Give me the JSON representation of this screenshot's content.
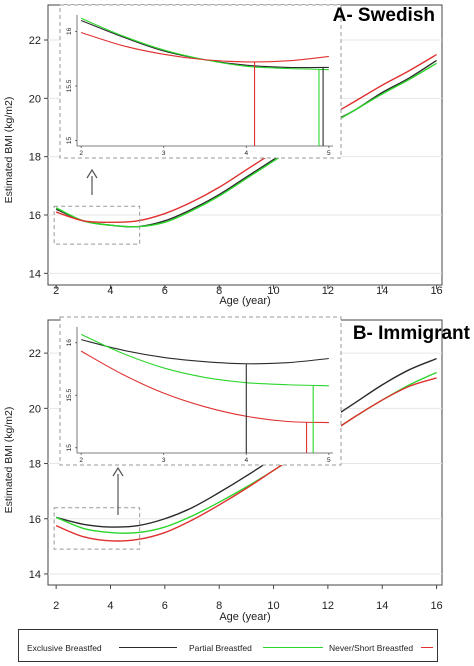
{
  "chart_data": [
    {
      "type": "line",
      "panel_label": "A- Swedish",
      "xlabel": "Age (year)",
      "ylabel": "Estimated BMI (kg/m2)",
      "xlim": [
        1.7,
        16.2
      ],
      "ylim": [
        13.6,
        23.2
      ],
      "x_ticks": [
        "2",
        "4",
        "6",
        "8",
        "10",
        "12",
        "14",
        "16"
      ],
      "y_ticks": [
        "14",
        "16",
        "18",
        "20",
        "22"
      ],
      "series": [
        {
          "name": "Exclusive Breastfed",
          "color": "#2b2b2b",
          "x": [
            2,
            3,
            4,
            5,
            6,
            7,
            8,
            9,
            10,
            11,
            12,
            13,
            14,
            15,
            16
          ],
          "y": [
            16.2,
            15.8,
            15.65,
            15.6,
            15.8,
            16.2,
            16.7,
            17.3,
            17.9,
            18.5,
            19.1,
            19.6,
            20.2,
            20.7,
            21.3
          ]
        },
        {
          "name": "Partial Breastfed",
          "color": "#2bd62b",
          "x": [
            2,
            3,
            4,
            5,
            6,
            7,
            8,
            9,
            10,
            11,
            12,
            13,
            14,
            15,
            16
          ],
          "y": [
            16.25,
            15.8,
            15.65,
            15.6,
            15.75,
            16.15,
            16.65,
            17.25,
            17.85,
            18.45,
            19.05,
            19.6,
            20.15,
            20.65,
            21.2
          ]
        },
        {
          "name": "Never/Short Breastfed",
          "color": "#e03030",
          "x": [
            2,
            3,
            4,
            5,
            6,
            7,
            8,
            9,
            10,
            11,
            12,
            13,
            14,
            15,
            16
          ],
          "y": [
            16.1,
            15.8,
            15.75,
            15.8,
            16.05,
            16.45,
            16.95,
            17.55,
            18.15,
            18.75,
            19.35,
            19.9,
            20.45,
            20.95,
            21.5
          ]
        }
      ],
      "inset": {
        "xlim": [
          1.95,
          5.05
        ],
        "ylim": [
          14.95,
          16.15
        ],
        "x_ticks": [
          "2",
          "3",
          "4",
          "5"
        ],
        "y_ticks": [
          "15",
          "15.5",
          "16"
        ],
        "series": [
          {
            "name": "Exclusive Breastfed",
            "x": [
              2,
              2.5,
              3,
              3.5,
              4,
              4.5,
              5
            ],
            "y": [
              16.1,
              15.95,
              15.82,
              15.74,
              15.69,
              15.67,
              15.67
            ]
          },
          {
            "name": "Partial Breastfed",
            "x": [
              2,
              2.5,
              3,
              3.5,
              4,
              4.5,
              5
            ],
            "y": [
              16.12,
              15.96,
              15.83,
              15.74,
              15.68,
              15.66,
              15.65
            ]
          },
          {
            "name": "Never/Short Breastfed",
            "x": [
              2,
              2.5,
              3,
              3.5,
              4,
              4.5,
              5
            ],
            "y": [
              15.99,
              15.87,
              15.79,
              15.74,
              15.72,
              15.73,
              15.77
            ]
          }
        ],
        "minimum_markers": [
          {
            "series": "Never/Short Breastfed",
            "x": 4.1,
            "y": 15.72
          },
          {
            "series": "Partial Breastfed",
            "x": 4.88,
            "y": 15.65
          },
          {
            "series": "Exclusive Breastfed",
            "x": 4.93,
            "y": 15.67
          }
        ]
      },
      "zoom_box": {
        "x": [
          2,
          5
        ],
        "y": [
          15,
          16.3
        ]
      }
    },
    {
      "type": "line",
      "panel_label": "B- Immigrant",
      "xlabel": "Age (year)",
      "ylabel": "Estimated BMI (kg/m2)",
      "xlim": [
        1.7,
        16.2
      ],
      "ylim": [
        13.6,
        23.2
      ],
      "x_ticks": [
        "2",
        "4",
        "6",
        "8",
        "10",
        "12",
        "14",
        "16"
      ],
      "y_ticks": [
        "14",
        "16",
        "18",
        "20",
        "22"
      ],
      "series": [
        {
          "name": "Exclusive Breastfed",
          "color": "#2b2b2b",
          "x": [
            2,
            3,
            4,
            5,
            6,
            7,
            8,
            9,
            10,
            11,
            12,
            13,
            14,
            15,
            16
          ],
          "y": [
            16.05,
            15.8,
            15.7,
            15.75,
            16.0,
            16.4,
            16.95,
            17.55,
            18.2,
            18.9,
            19.55,
            20.2,
            20.85,
            21.4,
            21.8
          ]
        },
        {
          "name": "Partial Breastfed",
          "color": "#2bd62b",
          "x": [
            2,
            3,
            4,
            5,
            6,
            7,
            8,
            9,
            10,
            11,
            12,
            13,
            14,
            15,
            16
          ],
          "y": [
            16.05,
            15.65,
            15.5,
            15.5,
            15.7,
            16.1,
            16.6,
            17.15,
            17.75,
            18.4,
            19.05,
            19.7,
            20.3,
            20.85,
            21.3
          ]
        },
        {
          "name": "Never/Short Breastfed",
          "color": "#e03030",
          "x": [
            2,
            3,
            4,
            5,
            6,
            7,
            8,
            9,
            10,
            11,
            12,
            13,
            14,
            15,
            16
          ],
          "y": [
            15.75,
            15.35,
            15.2,
            15.25,
            15.5,
            15.95,
            16.5,
            17.1,
            17.75,
            18.4,
            19.05,
            19.7,
            20.3,
            20.8,
            21.1
          ]
        }
      ],
      "inset": {
        "xlim": [
          1.95,
          5.05
        ],
        "ylim": [
          14.95,
          16.15
        ],
        "x_ticks": [
          "2",
          "3",
          "4",
          "5"
        ],
        "y_ticks": [
          "15",
          "15.5",
          "16"
        ],
        "series": [
          {
            "name": "Exclusive Breastfed",
            "x": [
              2,
              2.5,
              3,
              3.5,
              4,
              4.5,
              5
            ],
            "y": [
              16.03,
              15.93,
              15.86,
              15.82,
              15.8,
              15.81,
              15.85
            ]
          },
          {
            "name": "Partial Breastfed",
            "x": [
              2,
              2.5,
              3,
              3.5,
              4,
              4.5,
              5
            ],
            "y": [
              16.08,
              15.9,
              15.76,
              15.67,
              15.62,
              15.6,
              15.59
            ]
          },
          {
            "name": "Never/Short Breastfed",
            "x": [
              2,
              2.5,
              3,
              3.5,
              4,
              4.5,
              5
            ],
            "y": [
              15.92,
              15.7,
              15.52,
              15.39,
              15.3,
              15.25,
              15.24
            ]
          }
        ],
        "minimum_markers": [
          {
            "series": "Exclusive Breastfed",
            "x": 4.0,
            "y": 15.8
          },
          {
            "series": "Never/Short Breastfed",
            "x": 4.73,
            "y": 15.24
          },
          {
            "series": "Partial Breastfed",
            "x": 4.81,
            "y": 15.59
          }
        ]
      },
      "zoom_box": {
        "x": [
          2,
          5
        ],
        "y": [
          14.9,
          16.4
        ]
      }
    }
  ],
  "legend": {
    "items": [
      {
        "label": "Exclusive Breastfed",
        "color": "#2b2b2b"
      },
      {
        "label": "Partial Breastfed",
        "color": "#2bd62b"
      },
      {
        "label": "Never/Short Breastfed",
        "color": "#e03030"
      }
    ]
  }
}
